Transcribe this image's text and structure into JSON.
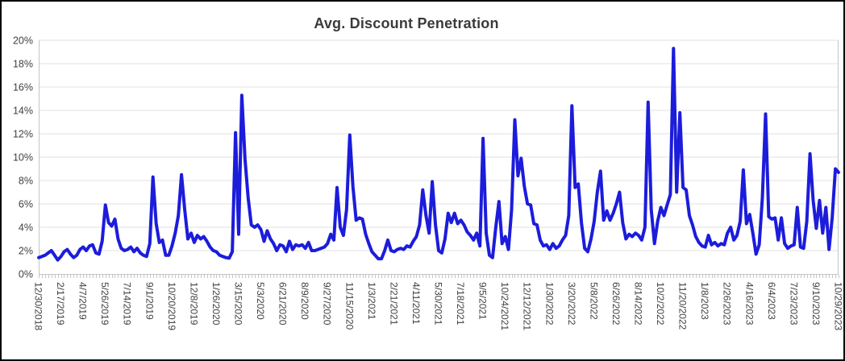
{
  "chart_data": {
    "type": "line",
    "title": "Avg. Discount Penetration",
    "unit": "percent",
    "legend": "none",
    "grid": "horizontal",
    "y_axis": {
      "min": 0,
      "max": 20,
      "step": 2,
      "labels": [
        "0%",
        "2%",
        "4%",
        "6%",
        "8%",
        "10%",
        "12%",
        "14%",
        "16%",
        "18%",
        "20%"
      ]
    },
    "x_axis": {
      "total_points": 253,
      "point_interval": "weekly",
      "label_interval_points": 7,
      "tick_labels": [
        "12/30/2018",
        "2/17/2019",
        "4/7/2019",
        "5/26/2019",
        "7/14/2019",
        "9/1/2019",
        "10/20/2019",
        "12/8/2019",
        "1/26/2020",
        "3/15/2020",
        "5/3/2020",
        "6/21/2020",
        "8/9/2020",
        "9/27/2020",
        "11/15/2020",
        "1/3/2021",
        "2/21/2021",
        "4/11/2021",
        "5/30/2021",
        "7/18/2021",
        "9/5/2021",
        "10/24/2021",
        "12/12/2021",
        "1/30/2022",
        "3/20/2022",
        "5/8/2022",
        "6/26/2022",
        "8/14/2022",
        "10/2/2022",
        "11/20/2022",
        "1/8/2023",
        "2/26/2023",
        "4/16/2023",
        "6/4/2023",
        "7/23/2023",
        "9/10/2023",
        "10/29/2023"
      ]
    },
    "values": [
      1.4,
      1.5,
      1.6,
      1.8,
      2.0,
      1.6,
      1.2,
      1.5,
      1.9,
      2.1,
      1.7,
      1.4,
      1.6,
      2.1,
      2.3,
      2.0,
      2.4,
      2.5,
      1.8,
      1.7,
      2.8,
      5.9,
      4.4,
      4.1,
      4.7,
      3.0,
      2.2,
      2.0,
      2.1,
      2.3,
      1.9,
      2.2,
      1.8,
      1.6,
      1.5,
      2.6,
      8.3,
      4.3,
      2.7,
      2.9,
      1.6,
      1.6,
      2.4,
      3.5,
      5.0,
      8.5,
      5.5,
      3.0,
      3.5,
      2.7,
      3.3,
      3.0,
      3.2,
      2.8,
      2.3,
      2.0,
      1.9,
      1.6,
      1.5,
      1.4,
      1.35,
      1.9,
      12.1,
      3.4,
      15.3,
      9.8,
      6.5,
      4.2,
      4.0,
      4.2,
      3.8,
      2.8,
      3.7,
      3.0,
      2.6,
      2.0,
      2.5,
      2.4,
      1.9,
      2.8,
      2.1,
      2.5,
      2.4,
      2.5,
      2.2,
      2.7,
      2.0,
      2.0,
      2.1,
      2.2,
      2.3,
      2.6,
      3.4,
      2.9,
      7.4,
      4.0,
      3.3,
      5.5,
      11.9,
      7.5,
      4.6,
      4.8,
      4.7,
      3.4,
      2.6,
      1.9,
      1.6,
      1.3,
      1.3,
      2.0,
      2.9,
      2.0,
      1.9,
      2.1,
      2.2,
      2.1,
      2.4,
      2.3,
      2.8,
      3.2,
      4.2,
      7.2,
      5.0,
      3.5,
      7.9,
      4.2,
      2.0,
      1.8,
      3.0,
      5.2,
      4.4,
      5.2,
      4.3,
      4.6,
      4.2,
      3.6,
      3.3,
      2.9,
      3.5,
      2.4,
      11.6,
      3.5,
      1.6,
      1.4,
      4.0,
      6.2,
      2.6,
      3.2,
      2.1,
      5.5,
      13.2,
      8.4,
      9.9,
      7.5,
      6.0,
      5.9,
      4.3,
      4.2,
      2.9,
      2.4,
      2.5,
      2.1,
      2.6,
      2.2,
      2.4,
      2.9,
      3.3,
      5.0,
      14.4,
      7.4,
      7.7,
      4.4,
      2.2,
      1.9,
      3.0,
      4.5,
      7.0,
      8.8,
      4.6,
      5.4,
      4.6,
      5.2,
      6.0,
      7.0,
      4.4,
      3.0,
      3.4,
      3.2,
      3.5,
      3.3,
      2.9,
      4.0,
      14.7,
      5.5,
      2.6,
      4.5,
      5.7,
      5.0,
      5.9,
      6.8,
      19.3,
      7.0,
      13.8,
      7.4,
      7.2,
      5.0,
      4.2,
      3.2,
      2.7,
      2.4,
      2.3,
      3.3,
      2.5,
      2.7,
      2.4,
      2.6,
      2.5,
      3.5,
      4.0,
      2.9,
      3.3,
      4.5,
      8.9,
      4.3,
      5.1,
      3.5,
      1.7,
      2.5,
      6.5,
      13.7,
      4.9,
      4.7,
      4.8,
      2.9,
      4.8,
      2.6,
      2.2,
      2.4,
      2.5,
      5.7,
      2.3,
      2.2,
      4.5,
      10.3,
      6.3,
      3.9,
      6.3,
      3.5,
      5.7,
      2.1,
      4.8,
      9.0,
      8.7
    ],
    "colors": {
      "line": "#1C1CDB",
      "grid": "#E2E2E2",
      "axis": "#C5C5C5",
      "text": "#3F3F3F",
      "title_text": "#3A3A3A",
      "frame_border": "#000000",
      "background": "#FFFFFF"
    }
  }
}
